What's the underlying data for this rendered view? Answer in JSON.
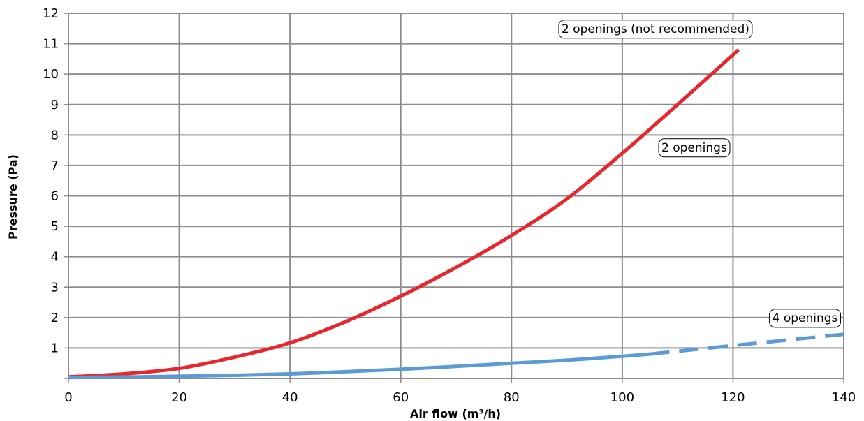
{
  "chart_data": {
    "type": "line",
    "title": "",
    "xlabel": "Air flow (m³/h)",
    "ylabel": "Pressure (Pa)",
    "xlim": [
      0,
      140
    ],
    "ylim": [
      0,
      12
    ],
    "x_ticks": [
      "0",
      "20",
      "40",
      "60",
      "80",
      "100",
      "120",
      "140"
    ],
    "y_ticks": [
      "1",
      "2",
      "3",
      "4",
      "5",
      "6",
      "7",
      "8",
      "9",
      "10",
      "11",
      "12"
    ],
    "grid": true,
    "legend": "none",
    "series": [
      {
        "name": "2 openings",
        "color": "#e8262b",
        "style": "solid",
        "x": [
          0,
          10,
          20,
          30,
          40,
          50,
          60,
          70,
          80,
          90,
          100,
          110,
          121
        ],
        "y": [
          0.05,
          0.15,
          0.33,
          0.7,
          1.17,
          1.86,
          2.7,
          3.65,
          4.7,
          5.9,
          7.4,
          9.0,
          10.8
        ]
      },
      {
        "name": "4 openings",
        "color": "#5b9bd5",
        "style": "solid",
        "x": [
          0,
          20,
          40,
          60,
          80,
          90,
          100,
          105
        ],
        "y": [
          0.03,
          0.07,
          0.15,
          0.3,
          0.5,
          0.6,
          0.73,
          0.8
        ]
      },
      {
        "name": "4 openings (extrapolated)",
        "color": "#5b9bd5",
        "style": "dashed",
        "x": [
          105,
          120,
          140
        ],
        "y": [
          0.8,
          1.08,
          1.45
        ]
      }
    ],
    "annotations": [
      {
        "text": "2 openings (not recommended)",
        "x": 106,
        "y": 11.5
      },
      {
        "text": "2 openings",
        "x": 113,
        "y": 7.6
      },
      {
        "text": "4 openings",
        "x": 133,
        "y": 2.0
      }
    ]
  }
}
